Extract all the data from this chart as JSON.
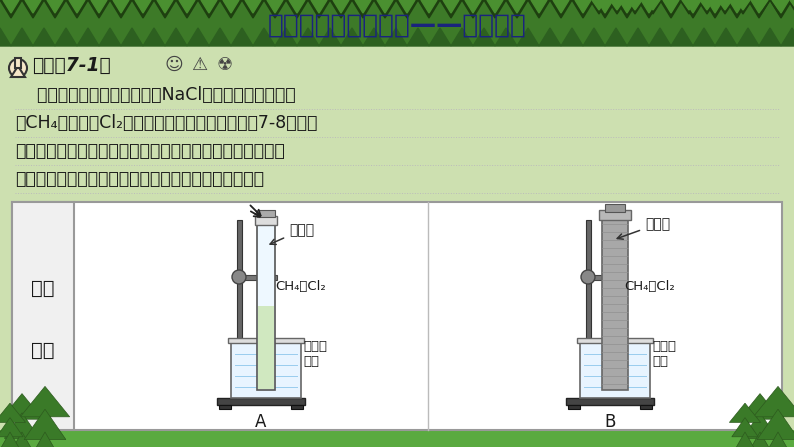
{
  "bg_color": "#cde0b0",
  "header_bg_dark": "#2d5a1e",
  "header_bg_mid": "#3d7a28",
  "header_text": "二、烷烃的典型性质——取代反应",
  "text_navy": "#1a237e",
  "body_bg": "#cde0b0",
  "experiment_icon_label": "【实验7-1】",
  "experiment_text_line1": "    取两支试管，均通过排饱和NaCl溶液的方法收集半试",
  "experiment_text_line2": "管CH₄和半试管Cl₂，分别用铁架台固定好（如图7-8）。将",
  "experiment_text_line3": "其中一支试管用铝箔套上，另一支试管放在光亮处（不要放",
  "experiment_text_line4": "在日光直射的地方）。静置，比较两支试管内的现象。",
  "side_label_line1": "实验",
  "side_label_line2": "操作",
  "label_A": "A",
  "label_B": "B",
  "label_diffuse": "漫射光",
  "label_foil": "铝箔套",
  "label_ch4cl2": "CH₄和Cl₂",
  "label_saltwater": "饱和食\n盐水",
  "green_tri_dark": "#1e4010",
  "green_tri_mid": "#2d6020",
  "green_body": "#4a8c3a",
  "green_bottom": "#5aaa40",
  "tree_green": "#3a7a28",
  "tree_dark": "#2d5a1e",
  "bottom_bar_color": "#5aaa40",
  "box_border": "#999999",
  "white": "#ffffff",
  "gray_light": "#f5f5f5",
  "text_black": "#1a1a1a",
  "beaker_blue": "#d0e8f8",
  "tube_clear": "#eef8ff",
  "foil_gray": "#a0a0a0",
  "metal_dark": "#555555",
  "metal_mid": "#777777",
  "metal_light": "#aaaaaa"
}
